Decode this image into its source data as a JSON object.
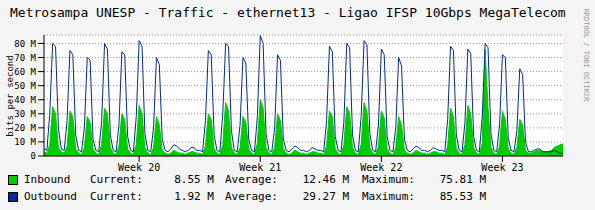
{
  "chart_data": {
    "type": "area",
    "title": "Metrosampa UNESP - Traffic - ethernet13 - Ligao IFSP 10Gbps MegaTelecom",
    "y_label": "bits per second",
    "watermark": "RRDTOOL / TOBI OETIKER",
    "x": [
      24,
      28,
      32,
      36,
      40,
      44,
      48,
      52,
      56,
      60,
      64,
      68,
      72,
      76,
      80,
      84,
      88,
      92,
      96,
      100,
      104,
      108,
      112,
      116,
      120,
      124,
      128,
      132,
      136,
      140,
      144,
      148,
      152,
      156,
      160,
      164,
      168,
      172,
      176,
      180,
      184,
      188,
      192,
      196,
      200,
      204,
      208,
      212,
      216,
      220,
      224,
      228,
      232,
      236,
      240,
      244,
      248,
      252,
      256,
      260,
      264,
      268,
      272,
      276,
      280,
      284,
      288,
      292,
      296,
      300,
      304,
      308,
      312,
      316,
      320,
      324,
      328,
      332,
      336,
      340,
      344,
      348,
      352,
      356,
      360,
      364,
      368,
      372,
      376,
      380,
      384,
      388,
      392,
      396,
      400,
      404,
      408,
      412,
      416,
      420,
      424,
      428,
      432,
      436,
      440,
      444,
      448,
      452,
      456,
      460,
      464,
      468,
      472,
      476,
      480,
      484,
      488,
      492,
      496,
      500,
      504,
      508,
      512,
      516,
      520,
      524,
      528,
      532,
      536,
      540,
      544,
      548,
      552,
      556,
      560,
      564,
      568,
      572,
      576,
      580,
      584,
      588,
      592,
      596,
      600,
      604,
      608,
      612,
      616,
      620,
      624,
      628,
      632,
      636,
      640,
      644,
      648,
      652,
      656,
      660,
      664,
      668,
      672,
      676,
      680,
      684,
      688,
      692,
      696,
      700,
      704,
      708,
      712,
      716,
      720,
      724,
      728,
      732,
      736,
      740,
      744
    ],
    "xlim": [
      24,
      744
    ],
    "xticks": [
      {
        "value": 156,
        "label": "Week 20"
      },
      {
        "value": 324,
        "label": "Week 21"
      },
      {
        "value": 492,
        "label": "Week 22"
      },
      {
        "value": 660,
        "label": "Week 23"
      }
    ],
    "ylim": [
      0,
      86
    ],
    "yticks": [
      0,
      {
        "value": 10,
        "label": "10 M"
      },
      {
        "value": 20,
        "label": "20 M"
      },
      {
        "value": 30,
        "label": "30 M"
      },
      {
        "value": 40,
        "label": "40 M"
      },
      {
        "value": 50,
        "label": "50 M"
      },
      {
        "value": 60,
        "label": "60 M"
      },
      {
        "value": 70,
        "label": "70 M"
      },
      {
        "value": 80,
        "label": "80 M"
      }
    ],
    "grid": true,
    "stat_labels": [
      "Current:",
      "Average:",
      "Maximum:"
    ],
    "series": [
      {
        "name": "Inbound",
        "type": "area",
        "color": "#00cc00",
        "stats": [
          "8.55 M",
          "12.46 M",
          "75.81 M"
        ],
        "values": [
          3,
          2,
          8,
          35,
          30,
          6,
          3,
          2,
          7,
          32,
          28,
          5,
          2,
          1,
          6,
          28,
          24,
          5,
          2,
          1,
          8,
          34,
          30,
          6,
          2,
          1,
          7,
          30,
          26,
          5,
          2,
          1,
          8,
          36,
          30,
          6,
          2,
          1,
          6,
          28,
          22,
          4,
          2,
          1,
          2,
          4,
          3,
          2,
          2,
          1,
          2,
          3,
          3,
          2,
          2,
          1,
          7,
          30,
          26,
          5,
          2,
          1,
          8,
          38,
          32,
          6,
          2,
          1,
          6,
          28,
          24,
          5,
          2,
          1,
          9,
          40,
          34,
          6,
          2,
          1,
          6,
          30,
          25,
          5,
          2,
          1,
          2,
          4,
          3,
          2,
          2,
          1,
          2,
          3,
          3,
          2,
          2,
          1,
          7,
          32,
          28,
          5,
          2,
          1,
          8,
          35,
          30,
          6,
          2,
          1,
          8,
          38,
          32,
          6,
          2,
          1,
          7,
          32,
          27,
          5,
          2,
          1,
          6,
          28,
          22,
          4,
          2,
          1,
          2,
          4,
          3,
          2,
          2,
          1,
          2,
          3,
          3,
          2,
          2,
          1,
          7,
          34,
          28,
          5,
          2,
          1,
          8,
          36,
          30,
          6,
          2,
          1,
          9,
          75.81,
          34,
          6,
          2,
          1,
          7,
          32,
          26,
          5,
          2,
          1,
          6,
          26,
          22,
          4,
          2,
          2,
          3,
          4,
          4,
          3,
          3,
          3,
          4,
          6,
          7,
          8,
          8.55
        ]
      },
      {
        "name": "Outbound",
        "type": "line",
        "color": "#002a97",
        "stats": [
          "1.92 M",
          "29.27 M",
          "85.53 M"
        ],
        "values": [
          5,
          4,
          30,
          80,
          78,
          20,
          5,
          4,
          25,
          75,
          72,
          15,
          4,
          3,
          20,
          70,
          68,
          12,
          4,
          3,
          25,
          80,
          76,
          15,
          4,
          3,
          22,
          74,
          72,
          14,
          4,
          3,
          28,
          82,
          78,
          16,
          4,
          3,
          20,
          70,
          65,
          12,
          4,
          3,
          5,
          8,
          7,
          5,
          4,
          3,
          4,
          6,
          6,
          4,
          4,
          3,
          25,
          75,
          72,
          15,
          4,
          3,
          30,
          80,
          78,
          18,
          4,
          3,
          22,
          70,
          66,
          12,
          4,
          3,
          28,
          85.53,
          80,
          16,
          4,
          3,
          20,
          72,
          68,
          12,
          4,
          3,
          5,
          7,
          6,
          4,
          4,
          3,
          4,
          6,
          5,
          4,
          4,
          3,
          25,
          78,
          74,
          14,
          4,
          3,
          24,
          80,
          77,
          15,
          4,
          3,
          28,
          82,
          79,
          16,
          4,
          3,
          22,
          76,
          72,
          14,
          4,
          3,
          20,
          70,
          64,
          12,
          4,
          3,
          5,
          7,
          6,
          4,
          4,
          3,
          4,
          6,
          5,
          4,
          4,
          3,
          26,
          78,
          75,
          15,
          4,
          3,
          24,
          76,
          73,
          14,
          4,
          3,
          28,
          80,
          77,
          16,
          4,
          3,
          22,
          72,
          70,
          13,
          4,
          3,
          18,
          62,
          58,
          10,
          3,
          3,
          4,
          5,
          5,
          3,
          3,
          3,
          3,
          4,
          3,
          2,
          1.92
        ]
      }
    ]
  }
}
